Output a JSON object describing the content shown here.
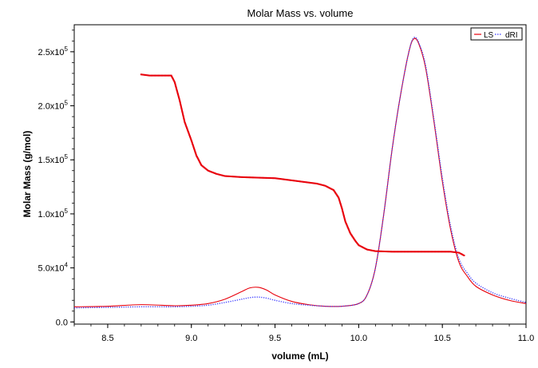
{
  "chart_data": {
    "type": "line",
    "title": "Molar Mass vs. volume",
    "xlabel": "volume (mL)",
    "ylabel": "Molar Mass (g/mol)",
    "xlim": [
      8.3,
      11.0
    ],
    "ylim": [
      -2000,
      275000
    ],
    "x_ticks": [
      {
        "value": 8.5,
        "label": "8.5"
      },
      {
        "value": 9.0,
        "label": "9.0"
      },
      {
        "value": 9.5,
        "label": "9.5"
      },
      {
        "value": 10.0,
        "label": "10.0"
      },
      {
        "value": 10.5,
        "label": "10.5"
      },
      {
        "value": 11.0,
        "label": "11.0"
      }
    ],
    "y_ticks": [
      {
        "value": 0,
        "base": "0.0",
        "exp": ""
      },
      {
        "value": 50000,
        "base": "5.0x10",
        "exp": "4"
      },
      {
        "value": 100000,
        "base": "1.0x10",
        "exp": "5"
      },
      {
        "value": 150000,
        "base": "1.5x10",
        "exp": "5"
      },
      {
        "value": 200000,
        "base": "2.0x10",
        "exp": "5"
      },
      {
        "value": 250000,
        "base": "2.5x10",
        "exp": "5"
      }
    ],
    "legend": {
      "position": "top-right",
      "entries": [
        {
          "label": "LS",
          "color": "#e8000b",
          "style": "solid"
        },
        {
          "label": "dRI",
          "color": "#3a3aff",
          "style": "dotted"
        }
      ]
    },
    "series": [
      {
        "name": "LS",
        "color": "#e8000b",
        "style": "solid",
        "x": [
          8.3,
          8.5,
          8.7,
          8.9,
          9.0,
          9.1,
          9.2,
          9.3,
          9.35,
          9.4,
          9.45,
          9.5,
          9.6,
          9.7,
          9.8,
          9.9,
          10.0,
          10.05,
          10.1,
          10.15,
          10.2,
          10.25,
          10.3,
          10.33,
          10.36,
          10.4,
          10.45,
          10.5,
          10.55,
          10.6,
          10.65,
          10.7,
          10.8,
          10.9,
          11.0
        ],
        "y": [
          14000,
          14500,
          16000,
          15000,
          15500,
          17000,
          21000,
          28000,
          31500,
          32000,
          29500,
          25000,
          19000,
          16000,
          14500,
          14500,
          17000,
          25000,
          50000,
          100000,
          160000,
          210000,
          250000,
          262000,
          257000,
          235000,
          185000,
          130000,
          85000,
          55000,
          42000,
          33000,
          25000,
          20000,
          17000
        ]
      },
      {
        "name": "dRI",
        "color": "#3a3aff",
        "style": "dotted",
        "x": [
          8.3,
          8.5,
          8.7,
          8.9,
          9.0,
          9.1,
          9.2,
          9.3,
          9.35,
          9.4,
          9.45,
          9.5,
          9.6,
          9.7,
          9.8,
          9.9,
          10.0,
          10.05,
          10.1,
          10.15,
          10.2,
          10.25,
          10.3,
          10.33,
          10.36,
          10.4,
          10.45,
          10.5,
          10.55,
          10.6,
          10.65,
          10.7,
          10.8,
          10.9,
          11.0
        ],
        "y": [
          13000,
          13500,
          14000,
          14000,
          14500,
          15500,
          18000,
          21000,
          22500,
          23000,
          22000,
          20000,
          17000,
          15500,
          14500,
          14500,
          17000,
          25000,
          50000,
          100000,
          160000,
          210000,
          250000,
          263000,
          258000,
          237000,
          187000,
          133000,
          88000,
          58000,
          45000,
          36000,
          27000,
          22000,
          18000
        ]
      },
      {
        "name": "Molar Mass",
        "color": "#e8000b",
        "style": "markers",
        "x": [
          8.7,
          8.75,
          8.8,
          8.85,
          8.88,
          8.9,
          8.93,
          8.96,
          9.0,
          9.03,
          9.06,
          9.1,
          9.15,
          9.2,
          9.3,
          9.4,
          9.5,
          9.6,
          9.7,
          9.75,
          9.8,
          9.85,
          9.88,
          9.9,
          9.92,
          9.95,
          9.98,
          10.0,
          10.05,
          10.1,
          10.2,
          10.3,
          10.4,
          10.5,
          10.55,
          10.6,
          10.63
        ],
        "y": [
          229000,
          228000,
          228000,
          228000,
          228000,
          222000,
          205000,
          185000,
          168000,
          154000,
          145000,
          140000,
          137000,
          135000,
          134000,
          133500,
          133000,
          131000,
          129000,
          128000,
          126000,
          122000,
          115000,
          105000,
          93000,
          82000,
          75000,
          71000,
          67000,
          65500,
          65000,
          65000,
          65000,
          65000,
          65000,
          64000,
          61500
        ]
      }
    ]
  }
}
